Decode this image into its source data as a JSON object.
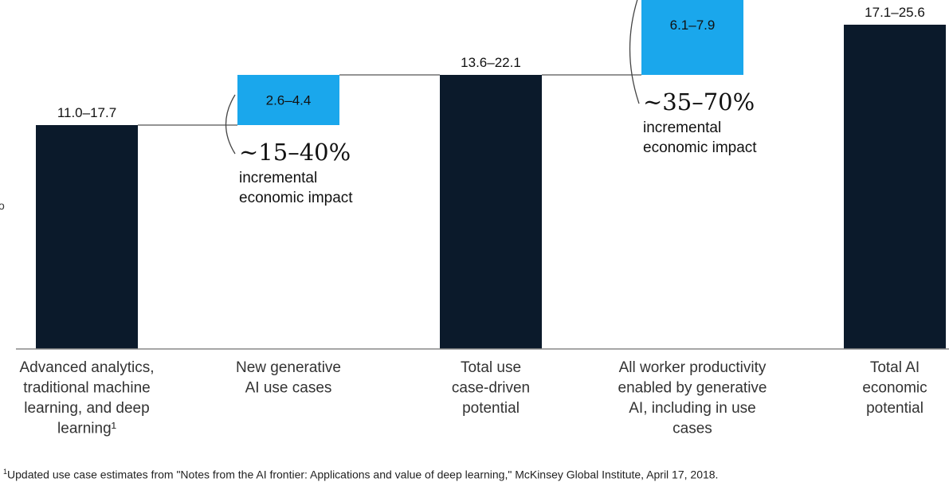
{
  "chart_data": {
    "type": "bar",
    "subtype": "waterfall",
    "categories": [
      [
        "Advanced analytics,",
        "traditional machine",
        "learning, and deep",
        "learning¹"
      ],
      [
        "New generative",
        "AI use cases"
      ],
      [
        "Total use",
        "case-driven",
        "potential"
      ],
      [
        "All worker productivity",
        "enabled by generative",
        "AI, including in use",
        "cases"
      ],
      [
        "Total AI",
        "economic",
        "potential"
      ]
    ],
    "ranges": [
      {
        "low": 11.0,
        "high": 17.7,
        "label": "11.0–17.7",
        "kind": "total"
      },
      {
        "low": 2.6,
        "high": 4.4,
        "label": "2.6–4.4",
        "kind": "increment"
      },
      {
        "low": 13.6,
        "high": 22.1,
        "label": "13.6–22.1",
        "kind": "total"
      },
      {
        "low": 6.1,
        "high": 7.9,
        "label": "6.1–7.9",
        "kind": "increment"
      },
      {
        "low": 17.1,
        "high": 25.6,
        "label": "17.1–25.6",
        "kind": "total"
      }
    ],
    "annotations": [
      {
        "after_bar": 1,
        "value": "~15–40%",
        "lines": [
          "incremental",
          "economic impact"
        ]
      },
      {
        "after_bar": 3,
        "value": "~35–70%",
        "lines": [
          "incremental",
          "economic impact"
        ]
      }
    ],
    "grid": false,
    "legend": "none"
  },
  "colors": {
    "total_bar": "#0b1a2b",
    "increment_bar": "#1aa7ec",
    "connector": "#555555",
    "axis": "#888888"
  },
  "footnote": {
    "marker": "1",
    "text": "Updated use case estimates from \"Notes from the AI frontier: Applications and value of deep learning,\" McKinsey Global Institute, April 17, 2018."
  },
  "edge_glyph": "o"
}
